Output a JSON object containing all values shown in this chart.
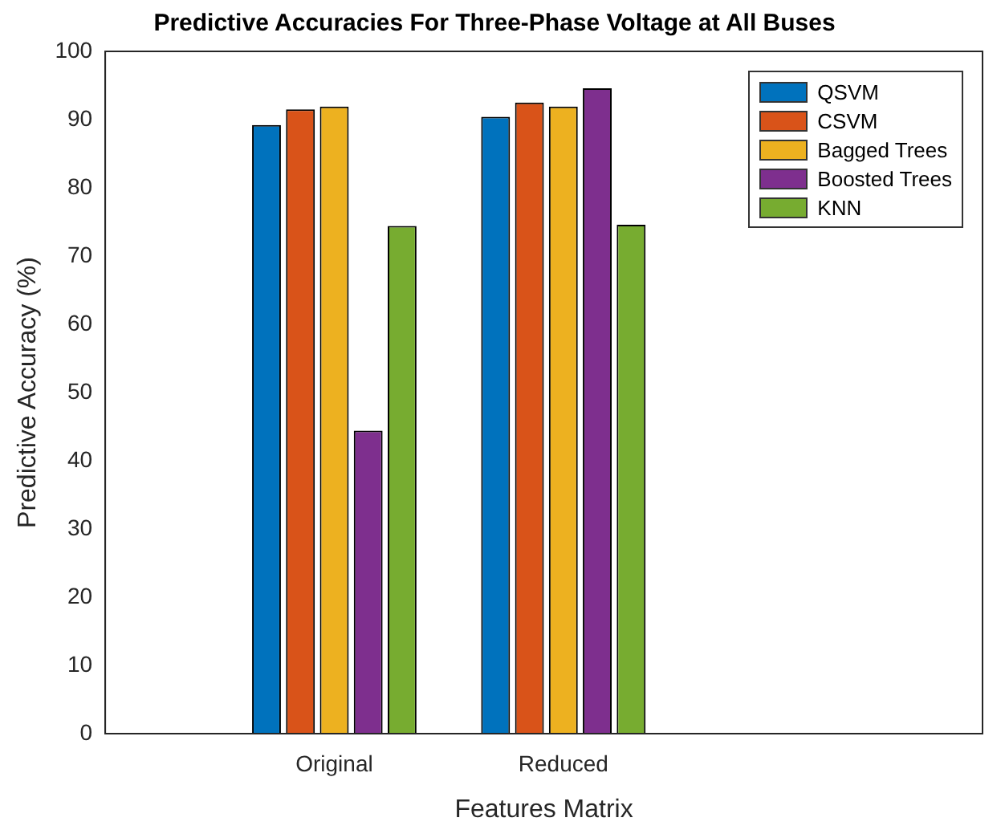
{
  "chart_data": {
    "type": "bar",
    "title": "Predictive Accuracies For Three-Phase Voltage at All Buses",
    "xlabel": "Features Matrix",
    "ylabel": "Predictive Accuracy (%)",
    "categories": [
      "Original",
      "Reduced"
    ],
    "series": [
      {
        "name": "QSVM",
        "color": "#0072bd",
        "values": [
          89.2,
          90.4
        ]
      },
      {
        "name": "CSVM",
        "color": "#d95319",
        "values": [
          91.5,
          92.5
        ]
      },
      {
        "name": "Bagged Trees",
        "color": "#edb120",
        "values": [
          91.9,
          91.9
        ]
      },
      {
        "name": "Boosted Trees",
        "color": "#7e2f8e",
        "values": [
          44.4,
          94.6
        ]
      },
      {
        "name": "KNN",
        "color": "#77ac30",
        "values": [
          74.4,
          74.6
        ]
      }
    ],
    "ylim": [
      0,
      100
    ],
    "yticks": [
      0,
      10,
      20,
      30,
      40,
      50,
      60,
      70,
      80,
      90,
      100
    ],
    "grid": false,
    "legend": "top right"
  }
}
